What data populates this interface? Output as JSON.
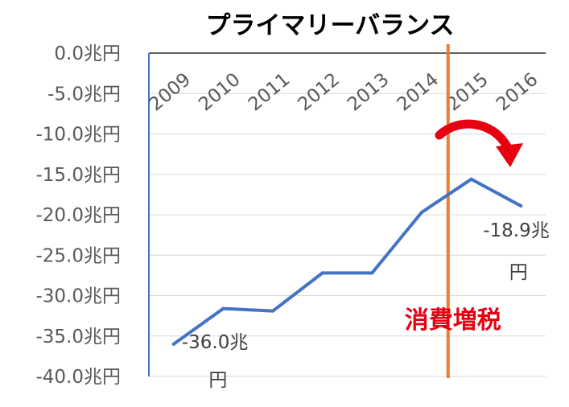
{
  "chart_data": {
    "type": "line",
    "title": "プライマリーバランス",
    "categories": [
      "2009",
      "2010",
      "2011",
      "2012",
      "2013",
      "2014",
      "2015",
      "2016"
    ],
    "series": [
      {
        "values": [
          -36.0,
          -31.6,
          -31.9,
          -27.2,
          -27.2,
          -19.7,
          -15.6,
          -18.9
        ]
      }
    ],
    "y_ticks": [
      "0.0兆円",
      "-5.0兆円",
      "-10.0兆円",
      "-15.0兆円",
      "-20.0兆円",
      "-25.0兆円",
      "-30.0兆円",
      "-35.0兆円",
      "-40.0兆円"
    ],
    "ylim": [
      -40,
      0
    ],
    "grid": true,
    "x_axis_position": "top",
    "data_labels": [
      {
        "index": 0,
        "line1": "-36.0兆",
        "line2": "円"
      },
      {
        "index": 7,
        "line1": "-18.9兆",
        "line2": "円"
      }
    ],
    "annotation": {
      "label": "消費増税",
      "between": [
        "2014",
        "2015"
      ],
      "line_color": "#ed7d31",
      "text_color": "#e60012",
      "arrow_color": "#e60012"
    },
    "colors": {
      "series": "#4472c4",
      "grid": "#d9d9d9",
      "axis": "#4472c4",
      "ticks": "#595959"
    }
  }
}
